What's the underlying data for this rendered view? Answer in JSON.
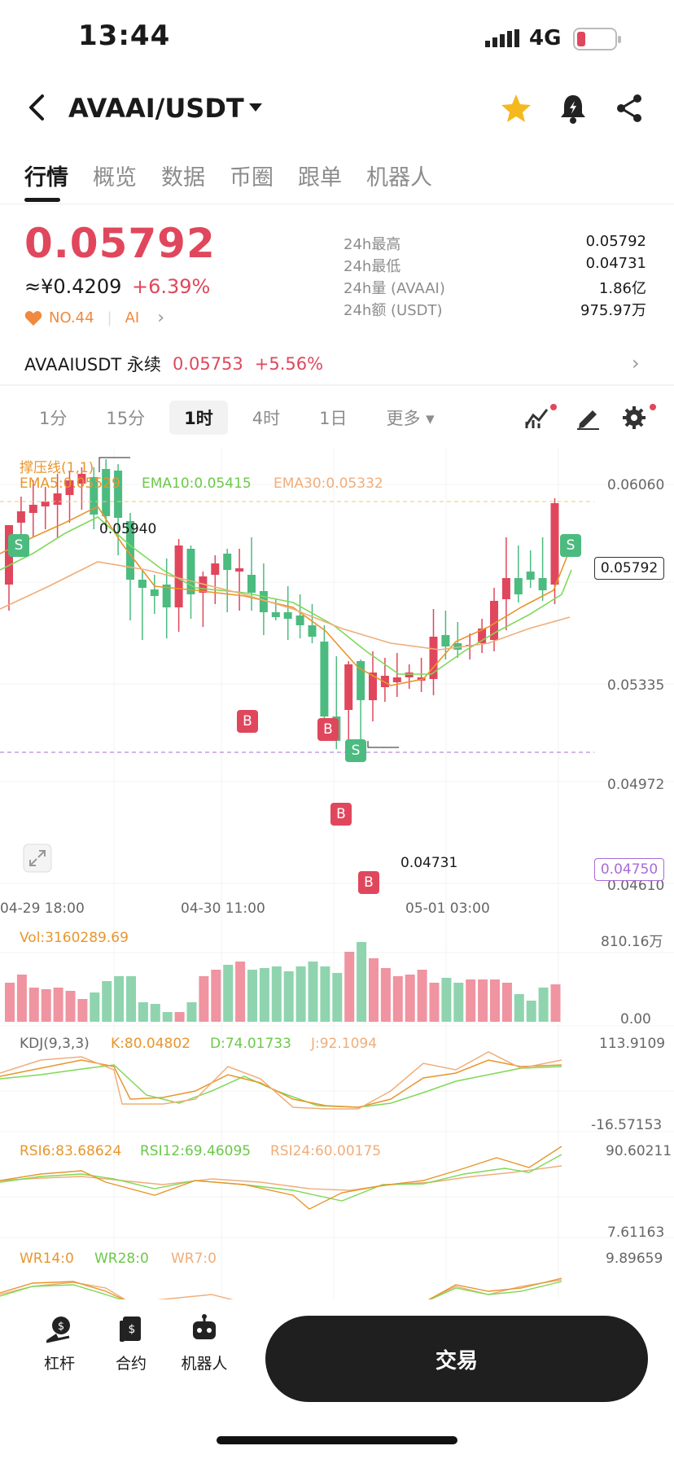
{
  "status_bar": {
    "time": "13:44",
    "network": "4G"
  },
  "header": {
    "pair": "AVAAI/USDT"
  },
  "tabs": [
    "行情",
    "概览",
    "数据",
    "币圈",
    "跟单",
    "机器人"
  ],
  "price": {
    "last": "0.05792",
    "cny": "≈¥0.4209",
    "change": "+6.39%",
    "rank": "NO.44",
    "tag": "AI"
  },
  "stats": [
    {
      "label": "24h最高",
      "value": "0.05792"
    },
    {
      "label": "24h最低",
      "value": "0.04731"
    },
    {
      "label": "24h量 (AVAAI)",
      "value": "1.86亿"
    },
    {
      "label": "24h额 (USDT)",
      "value": "975.97万"
    }
  ],
  "perp": {
    "label": "AVAAIUSDT 永续",
    "price": "0.05753",
    "change": "+5.56%"
  },
  "intervals": [
    "1分",
    "15分",
    "1时",
    "4时",
    "1日",
    "更多"
  ],
  "main_chart": {
    "indicator": "撑压线(1,1)",
    "ema5": "EMA5:0.05529",
    "ema10": "EMA10:0.05415",
    "ema30": "EMA30:0.05332",
    "y_ticks": [
      "0.06060",
      "0.05335",
      "0.04972",
      "0.04610"
    ],
    "high_mark": "0.05940",
    "low_mark": "0.04731",
    "last_tag": "0.05792",
    "level_tag": "0.04750",
    "x_ticks": [
      "04-29 18:00",
      "04-30 11:00",
      "05-01 03:00"
    ],
    "signals": {
      "buy": "B",
      "sell": "S"
    },
    "colors": {
      "up": "#e0475c",
      "down": "#4cbb80",
      "ema5": "#e8962c",
      "ema10": "#7ed957",
      "ema30": "#f0ad7a"
    }
  },
  "volume": {
    "label": "Vol:3160289.69",
    "max": "810.16万",
    "min": "0.00"
  },
  "kdj": {
    "label": "KDJ(9,3,3)",
    "k": "K:80.04802",
    "d": "D:74.01733",
    "j": "J:92.1094",
    "max": "113.9109",
    "min": "-16.57153"
  },
  "rsi": {
    "label": "RSI6:83.68624",
    "rsi12": "RSI12:69.46095",
    "rsi24": "RSI24:60.00175",
    "max": "90.60211",
    "min": "7.61163"
  },
  "wr": {
    "label": "WR14:0",
    "wr28": "WR28:0",
    "wr7": "WR7:0",
    "max": "9.89659"
  },
  "bottom_nav": [
    "杠杆",
    "合约",
    "机器人"
  ],
  "trade_button": "交易"
}
